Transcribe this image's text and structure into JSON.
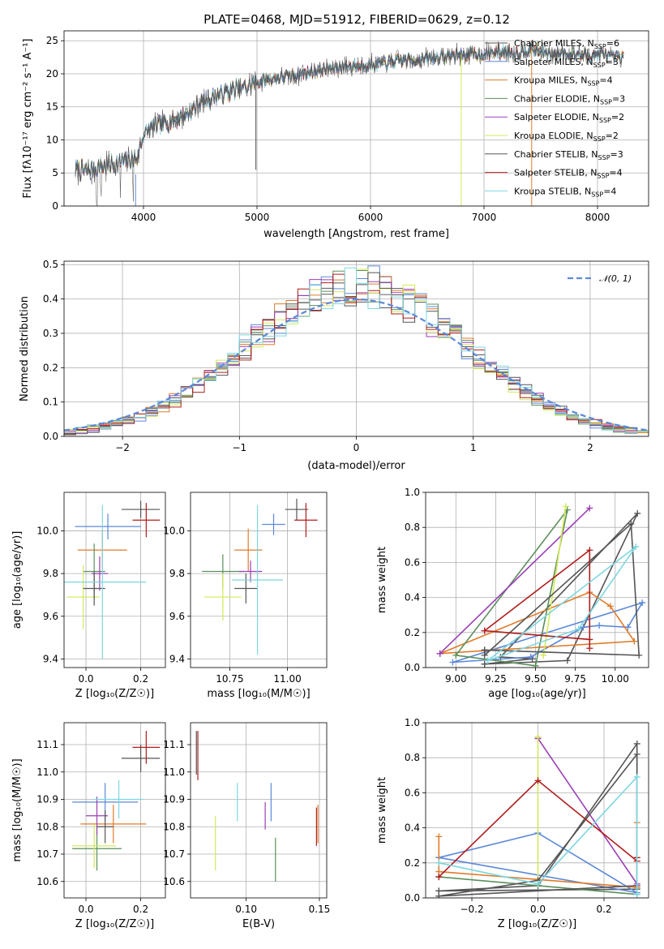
{
  "figure": {
    "title": "PLATE=0468, MJD=51912, FIBERID=0629, z=0.12"
  },
  "models": [
    {
      "name": "Chabrier MILES, N_SSP=6",
      "color": "#555555"
    },
    {
      "name": "Salpeter MILES, N_SSP=3",
      "color": "#5b88d8"
    },
    {
      "name": "Kroupa MILES, N_SSP=4",
      "color": "#e07b2a"
    },
    {
      "name": "Chabrier ELODIE, N_SSP=3",
      "color": "#5c8f5c"
    },
    {
      "name": "Salpeter ELODIE, N_SSP=2",
      "color": "#9b3fb5"
    },
    {
      "name": "Kroupa ELODIE, N_SSP=2",
      "color": "#d4e85a"
    },
    {
      "name": "Chabrier STELIB, N_SSP=3",
      "color": "#555555"
    },
    {
      "name": "Salpeter STELIB, N_SSP=4",
      "color": "#b01c1c"
    },
    {
      "name": "Kroupa STELIB, N_SSP=4",
      "color": "#7dd6e0"
    }
  ],
  "legend_labels": [
    {
      "pre": "Chabrier MILES, N",
      "sub": "SSP",
      "post": "=6"
    },
    {
      "pre": "Salpeter MILES, N",
      "sub": "SSP",
      "post": "=3"
    },
    {
      "pre": "Kroupa MILES, N",
      "sub": "SSP",
      "post": "=4"
    },
    {
      "pre": "Chabrier ELODIE, N",
      "sub": "SSP",
      "post": "=3"
    },
    {
      "pre": "Salpeter ELODIE, N",
      "sub": "SSP",
      "post": "=2"
    },
    {
      "pre": "Kroupa ELODIE, N",
      "sub": "SSP",
      "post": "=2"
    },
    {
      "pre": "Chabrier STELIB, N",
      "sub": "SSP",
      "post": "=3"
    },
    {
      "pre": "Salpeter STELIB, N",
      "sub": "SSP",
      "post": "=4"
    },
    {
      "pre": "Kroupa STELIB, N",
      "sub": "SSP",
      "post": "=4"
    }
  ],
  "chart_data": [
    {
      "type": "line",
      "id": "spectrum",
      "xlabel": "wavelength [Angstrom, rest frame]",
      "ylabel": "Flux [fλ10⁻¹⁷ erg cm⁻² s⁻¹ A⁻¹]",
      "xlim": [
        3300,
        8450
      ],
      "ylim": [
        0,
        26.5
      ],
      "xticks": [
        4000,
        5000,
        6000,
        7000,
        8000
      ],
      "yticks": [
        0,
        5,
        10,
        15,
        20,
        25
      ],
      "legend": "right",
      "continuum": [
        [
          3400,
          5.5
        ],
        [
          3500,
          5.3
        ],
        [
          3600,
          5.8
        ],
        [
          3700,
          6.3
        ],
        [
          3800,
          6.6
        ],
        [
          3900,
          6.9
        ],
        [
          3950,
          7.4
        ],
        [
          4000,
          11
        ],
        [
          4100,
          12
        ],
        [
          4200,
          12.6
        ],
        [
          4300,
          13.2
        ],
        [
          4400,
          14.2
        ],
        [
          4500,
          15.6
        ],
        [
          4600,
          16.4
        ],
        [
          4700,
          17
        ],
        [
          4800,
          17.6
        ],
        [
          4900,
          18
        ],
        [
          5000,
          18.7
        ],
        [
          5100,
          19.2
        ],
        [
          5200,
          19.4
        ],
        [
          5300,
          19.7
        ],
        [
          5400,
          20
        ],
        [
          5500,
          20.4
        ],
        [
          5600,
          20.7
        ],
        [
          5700,
          21
        ],
        [
          5800,
          21.1
        ],
        [
          5900,
          21.2
        ],
        [
          6000,
          21.4
        ],
        [
          6100,
          21.6
        ],
        [
          6200,
          21.8
        ],
        [
          6300,
          22
        ],
        [
          6400,
          22.1
        ],
        [
          6500,
          22.3
        ],
        [
          6600,
          22.5
        ],
        [
          6700,
          22.7
        ],
        [
          6800,
          22.9
        ],
        [
          6900,
          23
        ],
        [
          7000,
          23
        ],
        [
          7100,
          23.2
        ],
        [
          7200,
          23.5
        ],
        [
          7300,
          23.1
        ],
        [
          7400,
          23.8
        ],
        [
          7500,
          23.4
        ],
        [
          7600,
          22.8
        ],
        [
          7700,
          23.3
        ],
        [
          7800,
          23
        ],
        [
          7900,
          22.8
        ],
        [
          8000,
          23
        ],
        [
          8100,
          22.6
        ],
        [
          8200,
          22.4
        ]
      ]
    },
    {
      "type": "line",
      "id": "residual-histogram",
      "xlabel": "(data-model)/error",
      "ylabel": "Normed distribution",
      "xlim": [
        -2.5,
        2.5
      ],
      "ylim": [
        0,
        0.51
      ],
      "xticks": [
        -2,
        -1,
        0,
        1,
        2
      ],
      "yticks": [
        0.0,
        0.1,
        0.2,
        0.3,
        0.4,
        0.5
      ],
      "legend": "top-right",
      "reference_label": "𝒩(0, 1)",
      "bin_edges_range": [
        -2.6,
        2.6
      ],
      "bin_width": 0.1
    },
    {
      "type": "scatter",
      "id": "age-vs-Z",
      "xlabel": "Z [log₁₀(Z/Z☉)]",
      "ylabel": "age  [log₁₀(age/yr)]",
      "xlim": [
        -0.08,
        0.29
      ],
      "ylim": [
        9.36,
        10.18
      ],
      "xticks": [
        0.0,
        0.2
      ],
      "yticks": [
        9.4,
        9.6,
        9.8,
        10.0
      ],
      "points": [
        {
          "x": 0.2,
          "y": 10.1,
          "xerr": 0.07,
          "yerr": 0.04
        },
        {
          "x": 0.08,
          "y": 10.02,
          "xerr": 0.12,
          "yerr": 0.06
        },
        {
          "x": 0.06,
          "y": 9.91,
          "xerr": 0.09,
          "yerr": 0.09
        },
        {
          "x": 0.03,
          "y": 9.81,
          "xerr": 0.04,
          "yerr": 0.13
        },
        {
          "x": 0.05,
          "y": 9.8,
          "xerr": 0.03,
          "yerr": 0.08
        },
        {
          "x": -0.01,
          "y": 9.69,
          "xerr": 0.06,
          "yerr": 0.15
        },
        {
          "x": 0.03,
          "y": 9.73,
          "xerr": 0.04,
          "yerr": 0.08
        },
        {
          "x": 0.22,
          "y": 10.05,
          "xerr": 0.05,
          "yerr": 0.08
        },
        {
          "x": 0.06,
          "y": 9.76,
          "xerr": 0.16,
          "yerr": 0.36
        }
      ]
    },
    {
      "type": "scatter",
      "id": "age-vs-mass",
      "xlabel": "mass [log₁₀(M/M☉)]",
      "ylabel": "",
      "xlim": [
        10.58,
        11.17
      ],
      "ylim": [
        9.36,
        10.18
      ],
      "xticks": [
        10.75,
        11.0
      ],
      "yticks": [
        9.4,
        9.6,
        9.8,
        10.0
      ],
      "points": [
        {
          "x": 11.04,
          "y": 10.1,
          "xerr": 0.05,
          "yerr": 0.05
        },
        {
          "x": 10.94,
          "y": 10.03,
          "xerr": 0.05,
          "yerr": 0.05
        },
        {
          "x": 10.83,
          "y": 9.91,
          "xerr": 0.06,
          "yerr": 0.1
        },
        {
          "x": 10.72,
          "y": 9.81,
          "xerr": 0.09,
          "yerr": 0.08
        },
        {
          "x": 10.84,
          "y": 9.81,
          "xerr": 0.05,
          "yerr": 0.05
        },
        {
          "x": 10.72,
          "y": 9.69,
          "xerr": 0.08,
          "yerr": 0.11
        },
        {
          "x": 10.82,
          "y": 9.73,
          "xerr": 0.05,
          "yerr": 0.07
        },
        {
          "x": 11.08,
          "y": 10.05,
          "xerr": 0.05,
          "yerr": 0.08
        },
        {
          "x": 10.87,
          "y": 9.77,
          "xerr": 0.11,
          "yerr": 0.35
        }
      ]
    },
    {
      "type": "line",
      "id": "weight-vs-age",
      "xlabel": "age  [log₁₀(age/yr)]",
      "ylabel": "mass weight",
      "xlim": [
        8.81,
        10.21
      ],
      "ylim": [
        0,
        1.0
      ],
      "xticks": [
        9.0,
        9.25,
        9.5,
        9.75,
        10.0
      ],
      "yticks": [
        0.0,
        0.2,
        0.4,
        0.6,
        0.8,
        1.0
      ],
      "series": [
        {
          "points": [
            [
              9.18,
              0.02
            ],
            [
              9.7,
              0.04
            ],
            [
              10.14,
              0.88
            ],
            [
              9.28,
              0.06
            ],
            [
              9.48,
              0.05
            ],
            [
              9.18,
              0.02
            ]
          ]
        },
        {
          "points": [
            [
              9.47,
              0.06
            ],
            [
              9.8,
              0.23
            ],
            [
              9.9,
              0.24
            ],
            [
              10.08,
              0.23
            ],
            [
              10.17,
              0.37
            ],
            [
              8.98,
              0.03
            ],
            [
              9.47,
              0.06
            ]
          ]
        },
        {
          "points": [
            [
              8.9,
              0.08
            ],
            [
              9.84,
              0.43
            ],
            [
              9.97,
              0.35
            ],
            [
              10.12,
              0.15
            ],
            [
              8.9,
              0.08
            ]
          ]
        },
        {
          "points": [
            [
              9.5,
              0.01
            ],
            [
              9.7,
              0.9
            ],
            [
              9.0,
              0.07
            ],
            [
              9.5,
              0.01
            ]
          ]
        },
        {
          "points": [
            [
              8.9,
              0.08
            ],
            [
              9.84,
              0.91
            ],
            [
              8.9,
              0.08
            ]
          ]
        },
        {
          "points": [
            [
              9.55,
              0.07
            ],
            [
              9.69,
              0.92
            ],
            [
              9.55,
              0.07
            ]
          ]
        },
        {
          "points": [
            [
              9.18,
              0.1
            ],
            [
              9.18,
              0.07
            ],
            [
              10.1,
              0.82
            ],
            [
              10.15,
              0.07
            ],
            [
              9.18,
              0.1
            ]
          ]
        },
        {
          "points": [
            [
              9.18,
              0.21
            ],
            [
              9.84,
              0.67
            ],
            [
              9.84,
              0.11
            ],
            [
              9.84,
              0.16
            ],
            [
              9.18,
              0.21
            ]
          ]
        },
        {
          "points": [
            [
              9.2,
              0.04
            ],
            [
              9.77,
              0.22
            ],
            [
              10.13,
              0.69
            ],
            [
              9.2,
              0.04
            ]
          ]
        }
      ]
    },
    {
      "type": "scatter",
      "id": "mass-vs-Z",
      "xlabel": "Z [log₁₀(Z/Z☉)]",
      "ylabel": "mass [log₁₀(M/M☉)]",
      "xlim": [
        -0.08,
        0.29
      ],
      "ylim": [
        10.54,
        11.18
      ],
      "xticks": [
        0.0,
        0.2
      ],
      "yticks": [
        10.6,
        10.7,
        10.8,
        10.9,
        11.0,
        11.1
      ],
      "points": [
        {
          "x": 0.2,
          "y": 11.05,
          "xerr": 0.07,
          "yerr": 0.05
        },
        {
          "x": 0.07,
          "y": 10.89,
          "xerr": 0.12,
          "yerr": 0.07
        },
        {
          "x": 0.1,
          "y": 10.81,
          "xerr": 0.12,
          "yerr": 0.07
        },
        {
          "x": 0.04,
          "y": 10.72,
          "xerr": 0.09,
          "yerr": 0.08
        },
        {
          "x": 0.04,
          "y": 10.84,
          "xerr": 0.04,
          "yerr": 0.07
        },
        {
          "x": 0.03,
          "y": 10.73,
          "xerr": 0.08,
          "yerr": 0.08
        },
        {
          "x": 0.07,
          "y": 10.8,
          "xerr": 0.03,
          "yerr": 0.06
        },
        {
          "x": 0.22,
          "y": 11.09,
          "xerr": 0.05,
          "yerr": 0.06
        },
        {
          "x": 0.12,
          "y": 10.9,
          "xerr": 0.09,
          "yerr": 0.07
        }
      ]
    },
    {
      "type": "scatter",
      "id": "mass-vs-EBV",
      "xlabel": "E(B-V)",
      "ylabel": "",
      "xlim": [
        0.062,
        0.155
      ],
      "ylim": [
        10.54,
        11.18
      ],
      "xticks": [
        0.05,
        0.1,
        0.15
      ],
      "yticks": [
        10.6,
        10.7,
        10.8,
        10.9,
        11.0,
        11.1
      ],
      "points": [
        {
          "x": 0.066,
          "y": 11.07,
          "yerr": 0.08,
          "ci": 0
        },
        {
          "x": 0.117,
          "y": 10.89,
          "yerr": 0.07,
          "ci": 1
        },
        {
          "x": 0.149,
          "y": 10.81,
          "yerr": 0.07,
          "ci": 2
        },
        {
          "x": 0.12,
          "y": 10.68,
          "yerr": 0.08,
          "ci": 3
        },
        {
          "x": 0.113,
          "y": 10.84,
          "yerr": 0.05,
          "ci": 4
        },
        {
          "x": 0.079,
          "y": 10.74,
          "yerr": 0.1,
          "ci": 5
        },
        {
          "x": 0.148,
          "y": 10.8,
          "yerr": 0.07,
          "ci": 7
        },
        {
          "x": 0.067,
          "y": 11.06,
          "yerr": 0.09,
          "ci": 7
        },
        {
          "x": 0.094,
          "y": 10.89,
          "yerr": 0.07,
          "ci": 8
        }
      ]
    },
    {
      "type": "line",
      "id": "weight-vs-Z",
      "xlabel": "Z [log₁₀(Z/Z☉)]",
      "ylabel": "mass weight",
      "xlim": [
        -0.34,
        0.335
      ],
      "ylim": [
        0,
        1.0
      ],
      "xticks": [
        -0.2,
        0.0,
        0.2
      ],
      "yticks": [
        0.0,
        0.2,
        0.4,
        0.6,
        0.8,
        1.0
      ],
      "series": [
        {
          "points": [
            [
              -0.3,
              0.04
            ],
            [
              0.0,
              0.07
            ],
            [
              0.3,
              0.88
            ],
            [
              0.3,
              0.05
            ],
            [
              -0.3,
              0.04
            ]
          ]
        },
        {
          "points": [
            [
              -0.3,
              0.23
            ],
            [
              0.0,
              0.37
            ],
            [
              0.3,
              0.03
            ],
            [
              -0.3,
              0.23
            ]
          ]
        },
        {
          "points": [
            [
              -0.3,
              0.35
            ],
            [
              -0.3,
              0.15
            ],
            [
              0.3,
              0.06
            ],
            [
              0.3,
              0.43
            ]
          ]
        },
        {
          "points": [
            [
              -0.3,
              0.12
            ],
            [
              0.0,
              0.07
            ],
            [
              0.3,
              0.02
            ]
          ]
        },
        {
          "points": [
            [
              0.0,
              0.91
            ],
            [
              0.3,
              0.08
            ],
            [
              0.0,
              0.91
            ]
          ]
        },
        {
          "points": [
            [
              0.0,
              0.92
            ],
            [
              0.0,
              0.08
            ]
          ]
        },
        {
          "points": [
            [
              -0.3,
              0.01
            ],
            [
              0.0,
              0.1
            ],
            [
              0.3,
              0.82
            ],
            [
              0.3,
              0.07
            ],
            [
              -0.3,
              0.01
            ]
          ]
        },
        {
          "points": [
            [
              -0.3,
              0.12
            ],
            [
              0.0,
              0.67
            ],
            [
              0.3,
              0.21
            ],
            [
              0.3,
              0.23
            ]
          ]
        },
        {
          "points": [
            [
              -0.3,
              0.2
            ],
            [
              0.0,
              0.08
            ],
            [
              0.3,
              0.69
            ],
            [
              0.3,
              0.02
            ]
          ]
        }
      ]
    }
  ]
}
